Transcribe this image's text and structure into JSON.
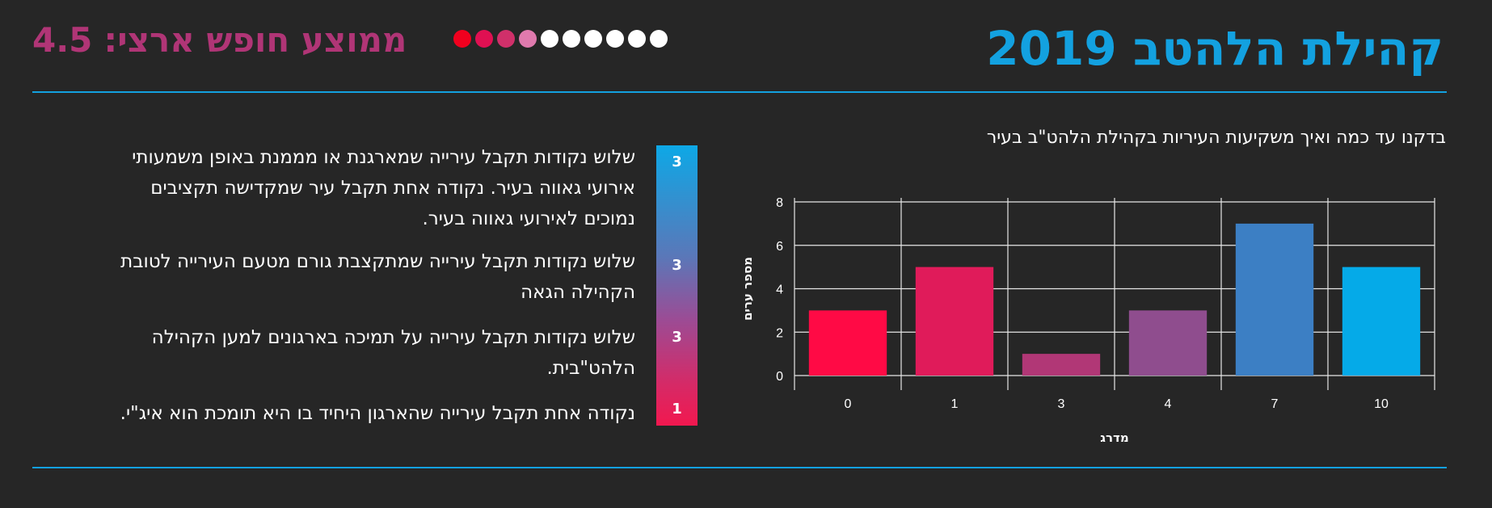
{
  "header": {
    "title": "קהילת הלהטב 2019",
    "national_average_label": "ממוצע חופש ארצי:",
    "national_average_value": "4.5",
    "rating_dots": [
      {
        "color": "#f0001e"
      },
      {
        "color": "#e01052"
      },
      {
        "color": "#d0306a"
      },
      {
        "color": "#e07aae"
      },
      {
        "color": "#ffffff"
      },
      {
        "color": "#ffffff"
      },
      {
        "color": "#ffffff"
      },
      {
        "color": "#ffffff"
      },
      {
        "color": "#ffffff"
      },
      {
        "color": "#ffffff"
      }
    ]
  },
  "chart_subtitle": "בדקנו עד כמה ואיך משקיעות העיריות בקהילת הלהט\"ב בעיר",
  "chart_data": {
    "type": "bar",
    "categories": [
      "0",
      "1",
      "3",
      "4",
      "7",
      "10"
    ],
    "values": [
      3,
      5,
      1,
      3,
      7,
      5
    ],
    "colors": [
      "#ff0a45",
      "#e01b5a",
      "#b13776",
      "#8f4d8e",
      "#3c7fc4",
      "#05aae8"
    ],
    "xlabel": "מדרג",
    "ylabel": "מספר ערים",
    "ylim": [
      0,
      8
    ],
    "yticks": [
      0,
      2,
      4,
      6,
      8
    ],
    "grid": true
  },
  "criteria": [
    {
      "score": "3",
      "text": "שלוש נקודות תקבל עירייה שמארגנת או מממנת באופן משמעותי אירועי גאווה בעיר. נקודה אחת תקבל עיר שמקדישה תקציבים נמוכים לאירועי גאווה בעיר."
    },
    {
      "score": "3",
      "text": "שלוש נקודות תקבל עירייה שמתקצבת גורם מטעם העירייה לטובת הקהילה הגאה"
    },
    {
      "score": "3",
      "text": "שלוש נקודות תקבל עירייה על תמיכה בארגונים למען הקהילה הלהט\"בית."
    },
    {
      "score": "1",
      "text": "נקודה אחת תקבל עירייה שהארגון היחיד בו היא תומכת הוא איג\"י."
    }
  ],
  "colors": {
    "background": "#262626",
    "accent": "#13a1e0",
    "magenta": "#b03576"
  }
}
